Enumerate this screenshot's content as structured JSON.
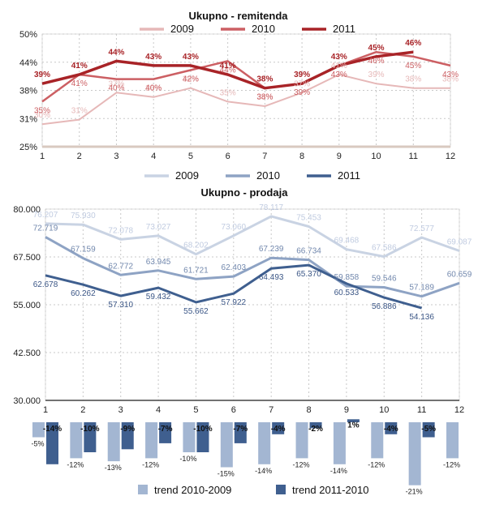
{
  "chart_data": [
    {
      "type": "line",
      "title": "Ukupno - remitenda",
      "x": [
        1,
        2,
        3,
        4,
        5,
        6,
        7,
        8,
        9,
        10,
        11,
        12
      ],
      "ylim": [
        25,
        50
      ],
      "y_ticks": [
        "25%",
        "31%",
        "38%",
        "44%",
        "50%"
      ],
      "legend_position": "top",
      "series": [
        {
          "name": "2009",
          "color": "#e6b8b8",
          "values": [
            30,
            31,
            37,
            36,
            38,
            35,
            34,
            37,
            41,
            39,
            38,
            38
          ],
          "labels": [
            "30%",
            "31%",
            "37%",
            "36%",
            "38%",
            "35%",
            "34%",
            "37%",
            "41%",
            "39%",
            "38%",
            "38%"
          ]
        },
        {
          "name": "2010",
          "color": "#cc5f63",
          "values": [
            35,
            41,
            40,
            40,
            42,
            44,
            38,
            39,
            43,
            46,
            45,
            43
          ],
          "labels": [
            "35%",
            "41%",
            "40%",
            "40%",
            "42%",
            "44%",
            "38%",
            "39%",
            "43%",
            "46%",
            "45%",
            "43%"
          ]
        },
        {
          "name": "2011",
          "color": "#a82327",
          "values": [
            39,
            41,
            44,
            43,
            43,
            41,
            38,
            39,
            43,
            45,
            46,
            null
          ],
          "labels": [
            "39%",
            "41%",
            "44%",
            "43%",
            "43%",
            "41%",
            "38%",
            "39%",
            "43%",
            "45%",
            "46%",
            ""
          ]
        }
      ]
    },
    {
      "type": "line",
      "title": "Ukupno - prodaja",
      "x": [
        1,
        2,
        3,
        4,
        5,
        6,
        7,
        8,
        9,
        10,
        11,
        12
      ],
      "ylim": [
        30000,
        80000
      ],
      "y_ticks": [
        "30.000",
        "42.500",
        "55.000",
        "67.500",
        "80.000"
      ],
      "legend_position": "top",
      "series": [
        {
          "name": "2009",
          "color": "#c9d3e3",
          "values": [
            76207,
            75930,
            72078,
            73027,
            68202,
            73060,
            78117,
            75453,
            69468,
            67586,
            72577,
            69087
          ],
          "labels": [
            "76.207",
            "75.930",
            "72.078",
            "73.027",
            "68.202",
            "73.060",
            "78.117",
            "75.453",
            "69.468",
            "67.586",
            "72.577",
            "69.087"
          ]
        },
        {
          "name": "2010",
          "color": "#8ea3c4",
          "values": [
            72719,
            67159,
            62772,
            63945,
            61721,
            62403,
            67239,
            66734,
            59858,
            59546,
            57189,
            60659
          ],
          "labels": [
            "72.719",
            "67.159",
            "62.772",
            "63.945",
            "61.721",
            "62.403",
            "67.239",
            "66.734",
            "59.858",
            "59.546",
            "57.189",
            "60.659"
          ]
        },
        {
          "name": "2011",
          "color": "#3f5f8f",
          "values": [
            62678,
            60262,
            57310,
            59432,
            55662,
            57922,
            64493,
            65370,
            60533,
            56886,
            54136,
            null
          ],
          "labels": [
            "62.678",
            "60.262",
            "57.310",
            "59.432",
            "55.662",
            "57.922",
            "64.493",
            "65.370",
            "60.533",
            "56.886",
            "54.136",
            ""
          ]
        }
      ]
    },
    {
      "type": "bar",
      "x": [
        1,
        2,
        3,
        4,
        5,
        6,
        7,
        8,
        9,
        10,
        11,
        12
      ],
      "legend_position": "bottom",
      "series": [
        {
          "name": "trend 2010-2009",
          "color": "#a3b6d2",
          "values": [
            -5,
            -12,
            -13,
            -12,
            -10,
            -15,
            -14,
            -12,
            -14,
            -12,
            -21,
            -12
          ],
          "labels": [
            "-5%",
            "-12%",
            "-13%",
            "-12%",
            "-10%",
            "-15%",
            "-14%",
            "-12%",
            "-14%",
            "-12%",
            "-21%",
            "-12%"
          ]
        },
        {
          "name": "trend 2011-2010",
          "color": "#3f5f8f",
          "values": [
            -14,
            -10,
            -9,
            -7,
            -10,
            -7,
            -4,
            -2,
            1,
            -4,
            -5,
            null
          ],
          "labels": [
            "-14%",
            "-10%",
            "-9%",
            "-7%",
            "-10%",
            "-7%",
            "-4%",
            "-2%",
            "1%",
            "-4%",
            "-5%",
            ""
          ]
        }
      ]
    }
  ]
}
